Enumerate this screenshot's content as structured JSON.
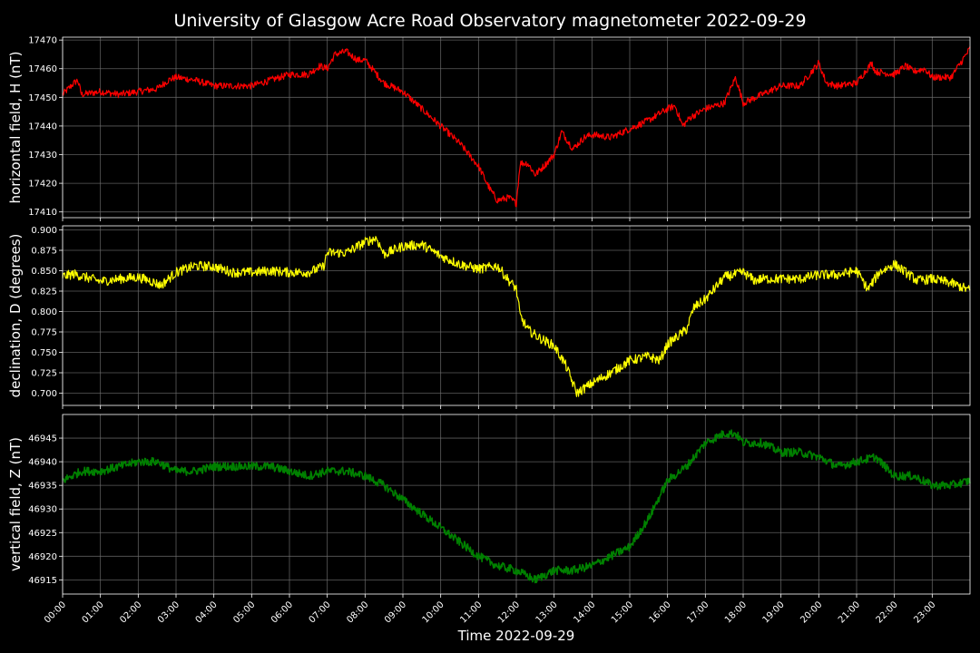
{
  "title": "University of Glasgow Acre Road Observatory magnetometer 2022-09-29",
  "chart_data": {
    "type": "line",
    "xlabel": "Time 2022-09-29",
    "x_ticks": [
      "00:00",
      "01:00",
      "02:00",
      "03:00",
      "04:00",
      "05:00",
      "06:00",
      "07:00",
      "08:00",
      "09:00",
      "10:00",
      "11:00",
      "12:00",
      "13:00",
      "14:00",
      "15:00",
      "16:00",
      "17:00",
      "18:00",
      "19:00",
      "20:00",
      "21:00",
      "22:00",
      "23:00"
    ],
    "x_range_hours": [
      0,
      24
    ],
    "grid": true,
    "panels": [
      {
        "name": "H",
        "ylabel": "horizontal field, H (nT)",
        "color": "#ff0000",
        "ylim": [
          17408,
          17471
        ],
        "yticks": [
          "17410",
          "17420",
          "17430",
          "17440",
          "17450",
          "17460",
          "17470"
        ],
        "ytick_values": [
          17410,
          17420,
          17430,
          17440,
          17450,
          17460,
          17470
        ],
        "x_hours": [
          0,
          0.3,
          0.4,
          0.5,
          1.0,
          1.5,
          2.0,
          2.5,
          2.8,
          3.0,
          3.5,
          4.0,
          4.5,
          5.0,
          5.5,
          6.0,
          6.5,
          6.8,
          7.0,
          7.2,
          7.5,
          7.8,
          8.0,
          8.5,
          9.0,
          9.5,
          10.0,
          10.5,
          11.0,
          11.3,
          11.5,
          11.8,
          12.0,
          12.1,
          12.3,
          12.5,
          12.8,
          13.0,
          13.2,
          13.5,
          13.8,
          14.0,
          14.5,
          15.0,
          15.5,
          16.0,
          16.2,
          16.4,
          16.6,
          17.0,
          17.5,
          17.8,
          18.0,
          18.5,
          19.0,
          19.5,
          20.0,
          20.2,
          20.5,
          21.0,
          21.4,
          21.5,
          22.0,
          22.3,
          22.5,
          22.8,
          23.0,
          23.5,
          23.7,
          24.0
        ],
        "values": [
          17451,
          17455,
          17456,
          17451,
          17452,
          17451,
          17452,
          17453,
          17456,
          17457,
          17456,
          17454,
          17454,
          17454,
          17456,
          17458,
          17458,
          17461,
          17460,
          17465,
          17466,
          17463,
          17463,
          17455,
          17452,
          17446,
          17440,
          17434,
          17426,
          17418,
          17414,
          17415,
          17413,
          17427,
          17427,
          17423,
          17427,
          17430,
          17438,
          17432,
          17436,
          17437,
          17436,
          17439,
          17442,
          17446,
          17447,
          17440,
          17443,
          17446,
          17448,
          17457,
          17448,
          17451,
          17454,
          17454,
          17462,
          17455,
          17454,
          17455,
          17462,
          17459,
          17458,
          17461,
          17459,
          17460,
          17457,
          17457,
          17461,
          17467
        ]
      },
      {
        "name": "D",
        "ylabel": "declination, D (degrees)",
        "color": "#ffff00",
        "ylim": [
          0.685,
          0.905
        ],
        "yticks": [
          "0.700",
          "0.725",
          "0.750",
          "0.775",
          "0.800",
          "0.825",
          "0.850",
          "0.875",
          "0.900"
        ],
        "ytick_values": [
          0.7,
          0.725,
          0.75,
          0.775,
          0.8,
          0.825,
          0.85,
          0.875,
          0.9
        ],
        "x_hours": [
          0,
          0.3,
          1.0,
          1.5,
          2.0,
          2.3,
          2.6,
          3.0,
          3.5,
          4.0,
          4.5,
          5.0,
          5.5,
          6.0,
          6.5,
          6.9,
          7.0,
          7.5,
          8.0,
          8.3,
          8.5,
          9.0,
          9.5,
          10.0,
          10.3,
          10.5,
          11.0,
          11.5,
          11.8,
          12.0,
          12.1,
          12.3,
          12.6,
          13.0,
          13.3,
          13.6,
          14.0,
          14.5,
          15.0,
          15.5,
          15.8,
          16.0,
          16.5,
          16.7,
          17.0,
          17.5,
          18.0,
          18.3,
          18.5,
          19.0,
          19.5,
          20.0,
          20.5,
          21.0,
          21.3,
          21.6,
          22.0,
          22.3,
          22.6,
          23.0,
          23.5,
          24.0
        ],
        "values": [
          0.843,
          0.846,
          0.837,
          0.84,
          0.842,
          0.838,
          0.832,
          0.848,
          0.856,
          0.855,
          0.848,
          0.848,
          0.85,
          0.848,
          0.848,
          0.855,
          0.872,
          0.872,
          0.885,
          0.89,
          0.87,
          0.88,
          0.882,
          0.868,
          0.862,
          0.858,
          0.852,
          0.856,
          0.838,
          0.828,
          0.795,
          0.778,
          0.768,
          0.758,
          0.735,
          0.7,
          0.712,
          0.725,
          0.74,
          0.745,
          0.74,
          0.76,
          0.778,
          0.805,
          0.815,
          0.842,
          0.848,
          0.838,
          0.84,
          0.84,
          0.84,
          0.845,
          0.845,
          0.85,
          0.827,
          0.848,
          0.858,
          0.848,
          0.838,
          0.84,
          0.835,
          0.826
        ]
      },
      {
        "name": "Z",
        "ylabel": "vertical field, Z (nT)",
        "color": "#008000",
        "ylim": [
          46912,
          46950
        ],
        "yticks": [
          "46915",
          "46920",
          "46925",
          "46930",
          "46935",
          "46940",
          "46945"
        ],
        "ytick_values": [
          46915,
          46920,
          46925,
          46930,
          46935,
          46940,
          46945
        ],
        "x_hours": [
          0,
          0.5,
          1.0,
          1.5,
          2.0,
          2.5,
          3.0,
          3.5,
          4.0,
          4.5,
          5.0,
          5.5,
          6.0,
          6.5,
          7.0,
          7.5,
          8.0,
          8.5,
          9.0,
          9.5,
          10.0,
          10.5,
          11.0,
          11.5,
          12.0,
          12.5,
          13.0,
          13.5,
          14.0,
          14.5,
          15.0,
          15.5,
          16.0,
          16.5,
          17.0,
          17.5,
          17.8,
          18.0,
          18.5,
          19.0,
          19.5,
          20.0,
          20.5,
          21.0,
          21.5,
          22.0,
          22.5,
          23.0,
          23.5,
          24.0
        ],
        "values": [
          46936,
          46938,
          46938,
          46939,
          46940,
          46940,
          46938,
          46938,
          46939,
          46939,
          46939,
          46939,
          46938,
          46937,
          46938,
          46938,
          46937,
          46935,
          46932,
          46929,
          46926,
          46923,
          46920,
          46918,
          46917,
          46915,
          46917,
          46917,
          46918,
          46920,
          46922,
          46928,
          46936,
          46939,
          46944,
          46946,
          46946,
          46944,
          46944,
          46942,
          46942,
          46941,
          46939,
          46940,
          46941,
          46937,
          46937,
          46935,
          46935,
          46936
        ]
      }
    ]
  }
}
